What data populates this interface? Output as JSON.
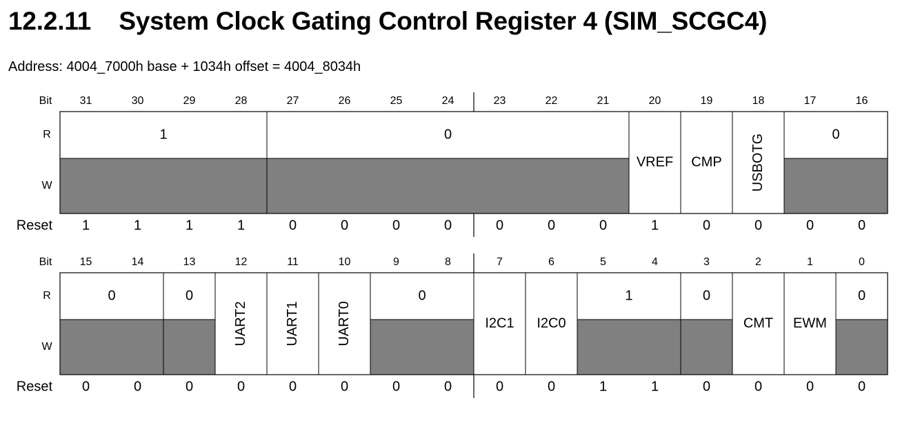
{
  "section": {
    "number": "12.2.11",
    "title": "System Clock Gating Control Register 4 (SIM_SCGC4)"
  },
  "address_line": "Address: 4004_7000h base + 1034h offset = 4004_8034h",
  "row_labels": {
    "bit": "Bit",
    "read": "R",
    "write": "W",
    "reset": "Reset"
  },
  "colors": {
    "reserved_fill": "#808080",
    "field_fill": "#ffffff",
    "line": "#000000"
  },
  "upper_half": {
    "bits": [
      "31",
      "30",
      "29",
      "28",
      "27",
      "26",
      "25",
      "24",
      "23",
      "22",
      "21",
      "20",
      "19",
      "18",
      "17",
      "16"
    ],
    "fields": [
      {
        "name": "",
        "read_value": "1",
        "reserved": true,
        "bits": "31-28"
      },
      {
        "name": "",
        "read_value": "0",
        "reserved": true,
        "bits": "27-21"
      },
      {
        "name": "VREF",
        "read_value": "",
        "reserved": false,
        "bits": "20"
      },
      {
        "name": "CMP",
        "read_value": "",
        "reserved": false,
        "bits": "19"
      },
      {
        "name": "USBOTG",
        "read_value": "",
        "reserved": false,
        "vertical": true,
        "bits": "18"
      },
      {
        "name": "",
        "read_value": "0",
        "reserved": true,
        "bits": "17-16"
      }
    ],
    "reset": [
      "1",
      "1",
      "1",
      "1",
      "0",
      "0",
      "0",
      "0",
      "0",
      "0",
      "0",
      "1",
      "0",
      "0",
      "0",
      "0"
    ]
  },
  "lower_half": {
    "bits": [
      "15",
      "14",
      "13",
      "12",
      "11",
      "10",
      "9",
      "8",
      "7",
      "6",
      "5",
      "4",
      "3",
      "2",
      "1",
      "0"
    ],
    "fields": [
      {
        "name": "",
        "read_value": "0",
        "reserved": true,
        "bits": "15-14"
      },
      {
        "name": "",
        "read_value": "0",
        "reserved": true,
        "bits": "13"
      },
      {
        "name": "UART2",
        "read_value": "",
        "reserved": false,
        "vertical": true,
        "bits": "12"
      },
      {
        "name": "UART1",
        "read_value": "",
        "reserved": false,
        "vertical": true,
        "bits": "11"
      },
      {
        "name": "UART0",
        "read_value": "",
        "reserved": false,
        "vertical": true,
        "bits": "10"
      },
      {
        "name": "",
        "read_value": "0",
        "reserved": true,
        "bits": "9-8"
      },
      {
        "name": "I2C1",
        "read_value": "",
        "reserved": false,
        "bits": "7"
      },
      {
        "name": "I2C0",
        "read_value": "",
        "reserved": false,
        "bits": "6"
      },
      {
        "name": "",
        "read_value": "1",
        "reserved": true,
        "bits": "5-4"
      },
      {
        "name": "",
        "read_value": "0",
        "reserved": true,
        "bits": "3"
      },
      {
        "name": "CMT",
        "read_value": "",
        "reserved": false,
        "bits": "2"
      },
      {
        "name": "EWM",
        "read_value": "",
        "reserved": false,
        "bits": "1"
      },
      {
        "name": "",
        "read_value": "0",
        "reserved": true,
        "bits": "0"
      }
    ],
    "reset": [
      "0",
      "0",
      "0",
      "0",
      "0",
      "0",
      "0",
      "0",
      "0",
      "0",
      "1",
      "1",
      "0",
      "0",
      "0",
      "0"
    ]
  }
}
